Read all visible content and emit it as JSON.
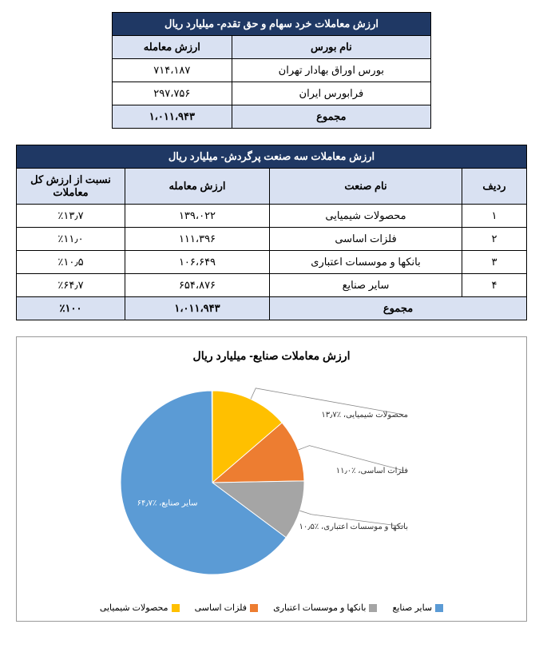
{
  "table1": {
    "title": "ارزش معاملات خرد سهام و حق تقدم- میلیارد ریال",
    "headers": [
      "نام بورس",
      "ارزش معامله"
    ],
    "rows": [
      {
        "name": "بورس اوراق بهادار تهران",
        "value": "۷۱۴،۱۸۷"
      },
      {
        "name": "فرابورس ایران",
        "value": "۲۹۷،۷۵۶"
      }
    ],
    "total": {
      "name": "مجموع",
      "value": "۱،۰۱۱،۹۴۳"
    }
  },
  "table2": {
    "title": "ارزش معاملات سه صنعت پرگردش- میلیارد ریال",
    "headers": [
      "ردیف",
      "نام صنعت",
      "ارزش معامله",
      "نسبت از ارزش کل معاملات"
    ],
    "rows": [
      {
        "idx": "۱",
        "name": "محصولات شیمیایی",
        "value": "۱۳۹،۰۲۲",
        "pct": "٪۱۳٫۷"
      },
      {
        "idx": "۲",
        "name": "فلزات اساسی",
        "value": "۱۱۱،۳۹۶",
        "pct": "٪۱۱٫۰"
      },
      {
        "idx": "۳",
        "name": "بانکها و موسسات اعتباری",
        "value": "۱۰۶،۶۴۹",
        "pct": "٪۱۰٫۵"
      },
      {
        "idx": "۴",
        "name": "سایر صنایع",
        "value": "۶۵۴،۸۷۶",
        "pct": "٪۶۴٫۷"
      }
    ],
    "total": {
      "name": "مجموع",
      "value": "۱،۰۱۱،۹۴۳",
      "pct": "٪۱۰۰"
    }
  },
  "chart": {
    "title": "ارزش معاملات صنایع- میلیارد ریال",
    "type": "pie",
    "slices": [
      {
        "label": "محصولات شیمیایی",
        "pct": 13.7,
        "color": "#ffc000",
        "callout": "محصولات شیمیایی، ٪۱۳٫۷"
      },
      {
        "label": "فلزات اساسی",
        "pct": 11.0,
        "color": "#ed7d31",
        "callout": "فلزات اساسی، ٪۱۱٫۰"
      },
      {
        "label": "بانکها و موسسات اعتباری",
        "pct": 10.5,
        "color": "#a5a5a5",
        "callout": "بانکها و موسسات اعتباری، ٪۱۰٫۵"
      },
      {
        "label": "سایر صنایع",
        "pct": 64.7,
        "color": "#5b9bd5",
        "callout": "سایر صنایع، ٪۶۴٫۷"
      }
    ],
    "legend": [
      "سایر صنایع",
      "بانکها و موسسات اعتباری",
      "فلزات اساسی",
      "محصولات شیمیایی"
    ],
    "legend_colors": [
      "#5b9bd5",
      "#a5a5a5",
      "#ed7d31",
      "#ffc000"
    ],
    "background_color": "#ffffff",
    "border_color": "#999999"
  }
}
